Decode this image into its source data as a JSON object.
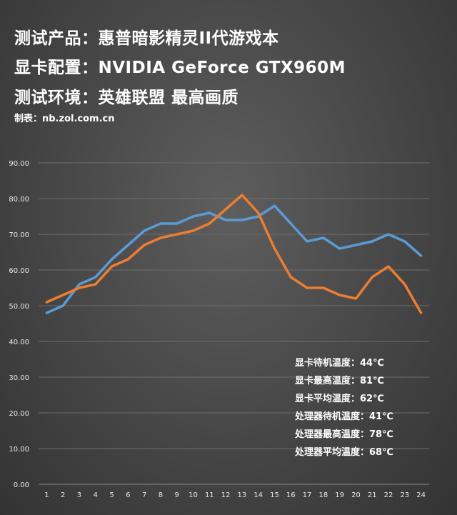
{
  "header": {
    "line1": "测试产品：惠普暗影精灵II代游戏本",
    "line2": "显卡配置：NVIDIA GeForce GTX960M",
    "line3": "测试环境：英雄联盟 最高画质",
    "credit": "制表：nb.zol.com.cn"
  },
  "chart_data": {
    "type": "line",
    "title": "",
    "xlabel": "",
    "ylabel": "",
    "x": [
      1,
      2,
      3,
      4,
      5,
      6,
      7,
      8,
      9,
      10,
      11,
      12,
      13,
      14,
      15,
      16,
      17,
      18,
      19,
      20,
      21,
      22,
      23,
      24
    ],
    "ylim": [
      0,
      90
    ],
    "yticks": [
      "0.00",
      "10.00",
      "20.00",
      "30.00",
      "40.00",
      "50.00",
      "60.00",
      "70.00",
      "80.00",
      "90.00"
    ],
    "grid": true,
    "legend": "none",
    "series": [
      {
        "color": "#5b9bd5",
        "values": [
          48,
          50,
          56,
          58,
          63,
          67,
          71,
          73,
          73,
          75,
          76,
          74,
          74,
          75,
          78,
          73,
          68,
          69,
          66,
          67,
          68,
          70,
          68,
          64
        ]
      },
      {
        "color": "#ed7d31",
        "values": [
          51,
          53,
          55,
          56,
          61,
          63,
          67,
          69,
          70,
          71,
          73,
          77,
          81,
          76,
          66,
          58,
          55,
          55,
          53,
          52,
          58,
          61,
          56,
          48
        ]
      }
    ],
    "annotations": [
      "显卡待机温度：44℃",
      "显卡最高温度：81℃",
      "显卡平均温度：62℃",
      "处理器待机温度：41℃",
      "处理器最高温度：78℃",
      "处理器平均温度：68℃"
    ]
  }
}
